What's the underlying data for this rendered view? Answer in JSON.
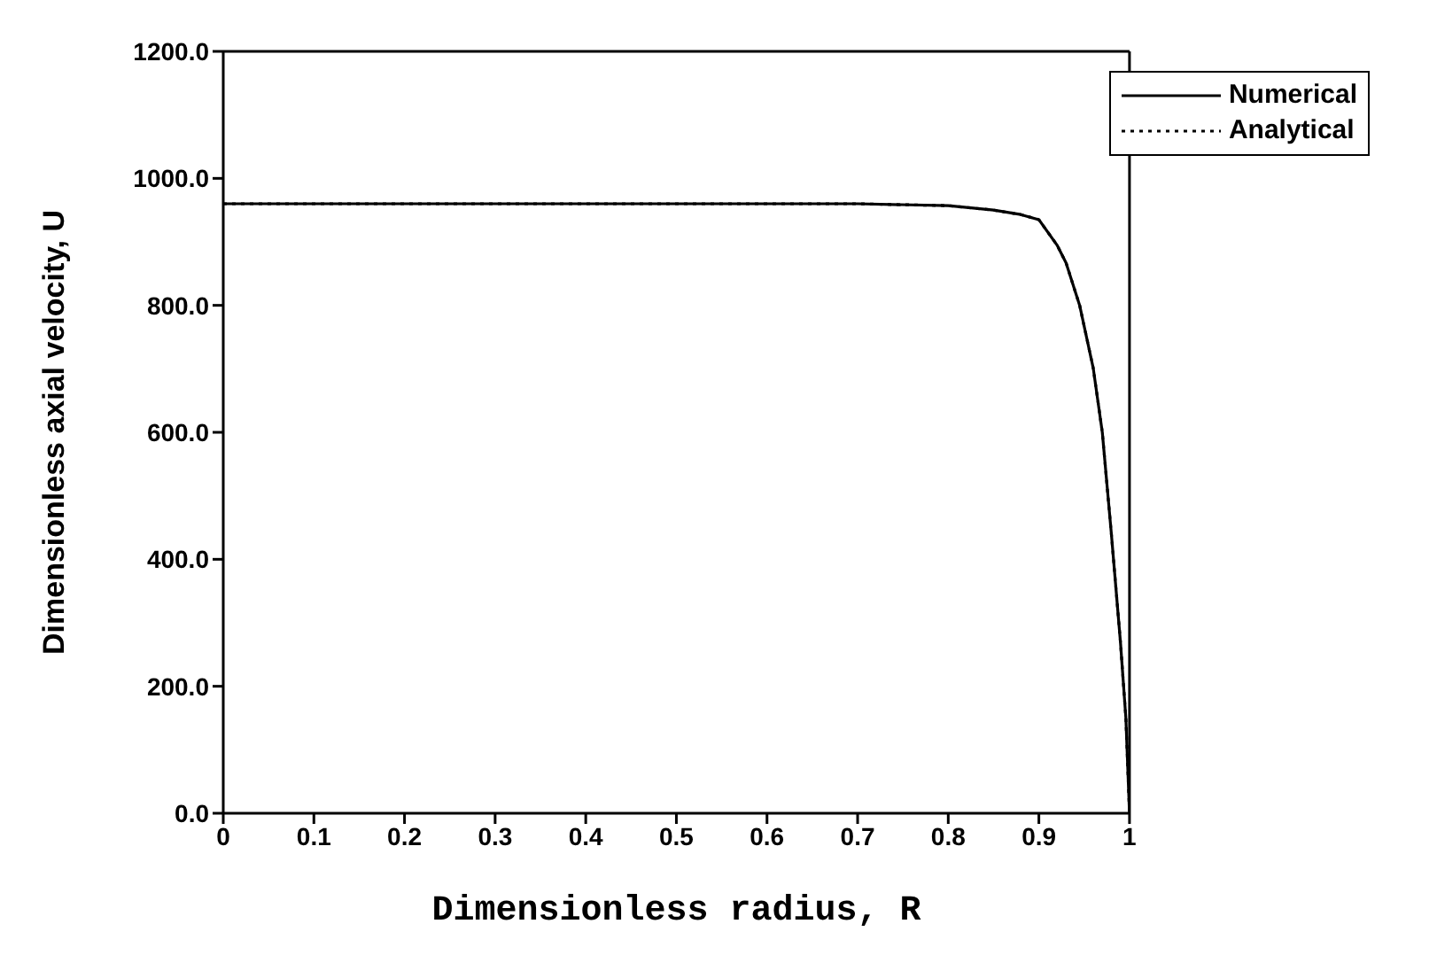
{
  "chart_data": {
    "type": "line",
    "xlabel": "Dimensionless radius, R",
    "ylabel": "Dimensionless axial velocity, U",
    "x": [
      0,
      0.1,
      0.2,
      0.3,
      0.4,
      0.5,
      0.6,
      0.7,
      0.8,
      0.85,
      0.88,
      0.9,
      0.92,
      0.93,
      0.945,
      0.96,
      0.97,
      0.98,
      0.99,
      0.996,
      1.0
    ],
    "series": [
      {
        "name": "Numerical",
        "color": "#000000",
        "line_style": "solid",
        "values": [
          960,
          960,
          960,
          960,
          960,
          960,
          960,
          960,
          957,
          950,
          943,
          935,
          895,
          867,
          800,
          701,
          600,
          440,
          270,
          150,
          0
        ]
      },
      {
        "name": "Analytical",
        "color": "#000000",
        "line_style": "dotted",
        "values": [
          960,
          960,
          960,
          960,
          960,
          960,
          960,
          960,
          957,
          950,
          943,
          935,
          895,
          867,
          800,
          701,
          600,
          440,
          270,
          150,
          0
        ]
      }
    ],
    "xlim": [
      0,
      1
    ],
    "xticks": [
      0,
      0.1,
      0.2,
      0.3,
      0.4,
      0.5,
      0.6,
      0.7,
      0.8,
      0.9,
      1
    ],
    "ylim": [
      0,
      1200
    ],
    "yticks": [
      {
        "value": 0,
        "label": "0.0"
      },
      {
        "value": 200,
        "label": "200.0"
      },
      {
        "value": 400,
        "label": "400.0"
      },
      {
        "value": 600,
        "label": "600.0"
      },
      {
        "value": 800,
        "label": "800.0"
      },
      {
        "value": 1000,
        "label": "1000.0"
      },
      {
        "value": 1200,
        "label": "1200.0"
      }
    ],
    "grid": false,
    "legend": "top right",
    "marker": "none"
  }
}
